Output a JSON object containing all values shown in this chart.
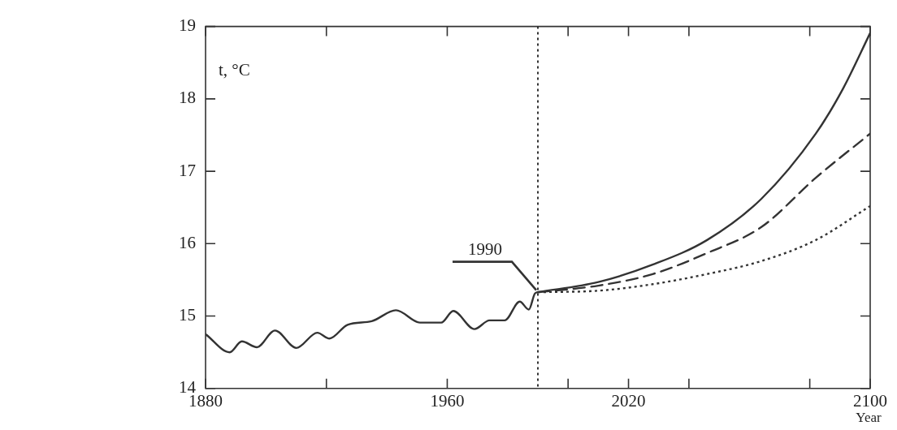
{
  "chart_data": {
    "type": "line",
    "xlabel": "Year",
    "ylabel": "t, °C",
    "xlim": [
      1880,
      2100
    ],
    "ylim": [
      14,
      19
    ],
    "xticks": [
      1880,
      {
        "value": 1920,
        "label": null
      },
      1960,
      {
        "value": 2000,
        "label": null
      },
      2020,
      {
        "value": 2040,
        "label": null
      },
      {
        "value": 2080,
        "label": null
      },
      2100
    ],
    "yticks": [
      14,
      15,
      16,
      17,
      18,
      19
    ],
    "grid": false,
    "legend": false,
    "marker": "none",
    "ref_lines": [
      {
        "axis": "x",
        "value": 1990,
        "label": "1990",
        "line_style": "dotted"
      }
    ],
    "series": [
      {
        "color": "#333333",
        "line_style": "solid",
        "x": [
          1880,
          1888,
          1892,
          1897,
          1903,
          1910,
          1917,
          1921,
          1927,
          1935,
          1943,
          1951,
          1958,
          1962,
          1969,
          1974,
          1979,
          1984,
          1987,
          1989,
          1990
        ],
        "values": [
          14.75,
          14.5,
          14.65,
          14.57,
          14.8,
          14.56,
          14.77,
          14.69,
          14.88,
          14.93,
          15.08,
          14.91,
          14.91,
          15.07,
          14.82,
          14.94,
          14.94,
          15.2,
          15.09,
          15.31,
          15.33
        ]
      },
      {
        "color": "#333333",
        "line_style": "solid",
        "x": [
          1990,
          2010,
          2028,
          2046,
          2064,
          2082,
          2091,
          2100
        ],
        "values": [
          15.33,
          15.47,
          15.71,
          16.05,
          16.62,
          17.52,
          18.14,
          18.91
        ]
      },
      {
        "color": "#333333",
        "line_style": "dashed",
        "x": [
          1990,
          2010,
          2028,
          2046,
          2064,
          2082,
          2100
        ],
        "values": [
          15.33,
          15.42,
          15.58,
          15.87,
          16.23,
          16.91,
          17.52
        ]
      },
      {
        "color": "#333333",
        "line_style": "dotted",
        "x": [
          1990,
          2010,
          2028,
          2046,
          2064,
          2082,
          2100
        ],
        "values": [
          15.33,
          15.35,
          15.44,
          15.58,
          15.76,
          16.05,
          16.52
        ]
      }
    ]
  }
}
